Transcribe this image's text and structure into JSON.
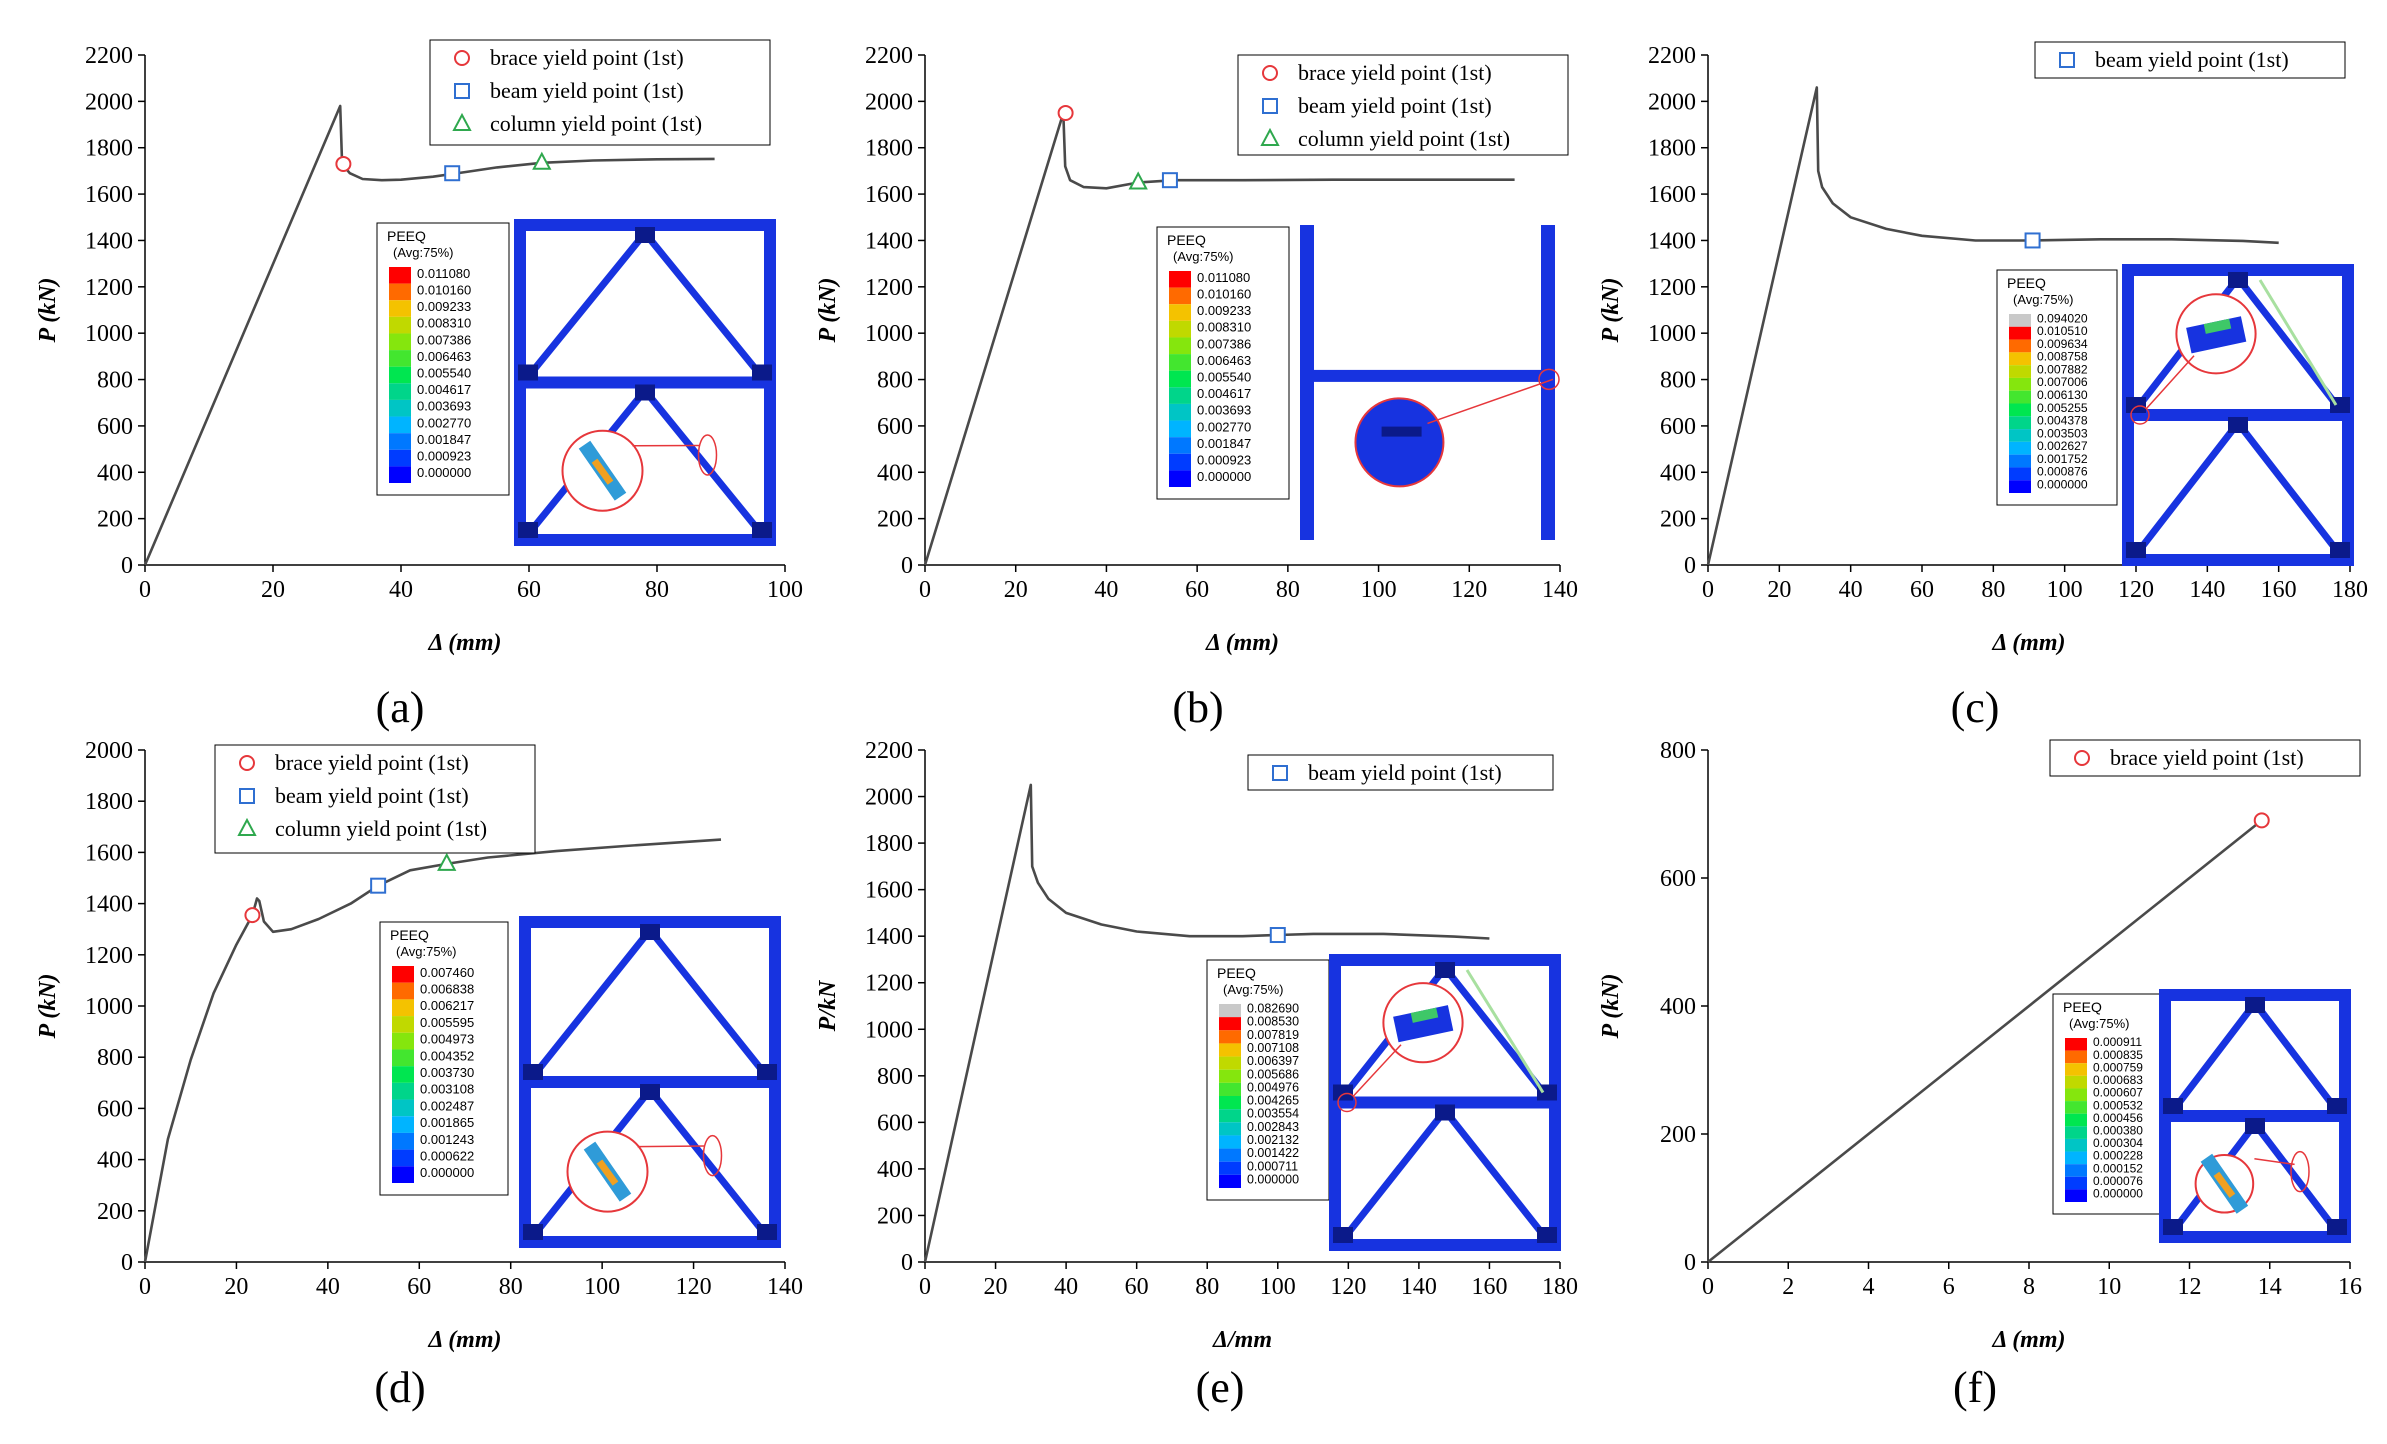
{
  "figure": {
    "panels": [
      "(a)",
      "(b)",
      "(c)",
      "(d)",
      "(e)",
      "(f)"
    ]
  },
  "chart_data": [
    {
      "id": "a",
      "type": "line",
      "panel_label": "(a)",
      "xlabel": "Δ (mm)",
      "ylabel": "P (kN)",
      "xlim": [
        0,
        100
      ],
      "ylim": [
        0,
        2200
      ],
      "xticks": [
        "0",
        "20",
        "40",
        "60",
        "80",
        "100"
      ],
      "yticks": [
        "0",
        "200",
        "400",
        "600",
        "800",
        "1000",
        "1200",
        "1400",
        "1600",
        "1800",
        "2000",
        "2200"
      ],
      "series": [
        {
          "name": "load-displacement",
          "x": [
            0,
            30.5,
            30.8,
            32,
            34,
            37,
            40,
            45,
            50,
            55,
            62,
            70,
            80,
            89
          ],
          "y": [
            0,
            1980,
            1730,
            1690,
            1665,
            1660,
            1662,
            1675,
            1695,
            1715,
            1735,
            1745,
            1750,
            1752
          ]
        }
      ],
      "markers": [
        {
          "kind": "brace",
          "label": "brace yield point (1st)",
          "x": 31,
          "y": 1730
        },
        {
          "kind": "beam",
          "label": "beam yield point (1st)",
          "x": 48,
          "y": 1690
        },
        {
          "kind": "column",
          "label": "column yield point (1st)",
          "x": 62,
          "y": 1735
        }
      ],
      "colorbar": {
        "title": "PEEQ",
        "subtitle": "(Avg:75%)",
        "values": [
          "0.011080",
          "0.010160",
          "0.009233",
          "0.008310",
          "0.007386",
          "0.006463",
          "0.005540",
          "0.004617",
          "0.003693",
          "0.002770",
          "0.001847",
          "0.000923",
          "0.000000"
        ]
      }
    },
    {
      "id": "b",
      "type": "line",
      "panel_label": "(b)",
      "xlabel": "Δ (mm)",
      "ylabel": "P (kN)",
      "xlim": [
        0,
        140
      ],
      "ylim": [
        0,
        2200
      ],
      "xticks": [
        "0",
        "20",
        "40",
        "60",
        "80",
        "100",
        "120",
        "140"
      ],
      "yticks": [
        "0",
        "200",
        "400",
        "600",
        "800",
        "1000",
        "1200",
        "1400",
        "1600",
        "1800",
        "2000",
        "2200"
      ],
      "series": [
        {
          "name": "load-displacement",
          "x": [
            0,
            30.5,
            30.9,
            32,
            35,
            40,
            47,
            55,
            70,
            90,
            110,
            130
          ],
          "y": [
            0,
            1950,
            1720,
            1660,
            1630,
            1625,
            1650,
            1660,
            1660,
            1662,
            1662,
            1662
          ]
        }
      ],
      "markers": [
        {
          "kind": "brace",
          "label": "brace yield point (1st)",
          "x": 31,
          "y": 1950
        },
        {
          "kind": "beam",
          "label": "beam yield point (1st)",
          "x": 54,
          "y": 1660
        },
        {
          "kind": "column",
          "label": "column yield point (1st)",
          "x": 47,
          "y": 1650
        }
      ],
      "colorbar": {
        "title": "PEEQ",
        "subtitle": "(Avg:75%)",
        "values": [
          "0.011080",
          "0.010160",
          "0.009233",
          "0.008310",
          "0.007386",
          "0.006463",
          "0.005540",
          "0.004617",
          "0.003693",
          "0.002770",
          "0.001847",
          "0.000923",
          "0.000000"
        ]
      }
    },
    {
      "id": "c",
      "type": "line",
      "panel_label": "(c)",
      "xlabel": "Δ (mm)",
      "ylabel": "P (kN)",
      "xlim": [
        0,
        180
      ],
      "ylim": [
        0,
        2200
      ],
      "xticks": [
        "0",
        "20",
        "40",
        "60",
        "80",
        "100",
        "120",
        "140",
        "160",
        "180"
      ],
      "yticks": [
        "0",
        "200",
        "400",
        "600",
        "800",
        "1000",
        "1200",
        "1400",
        "1600",
        "1800",
        "2000",
        "2200"
      ],
      "series": [
        {
          "name": "load-displacement",
          "x": [
            0,
            30.5,
            30.9,
            32,
            35,
            40,
            50,
            60,
            75,
            90,
            110,
            130,
            150,
            160
          ],
          "y": [
            0,
            2060,
            1700,
            1630,
            1560,
            1500,
            1450,
            1420,
            1400,
            1400,
            1405,
            1405,
            1398,
            1390
          ]
        }
      ],
      "markers": [
        {
          "kind": "beam",
          "label": "beam yield point (1st)",
          "x": 91,
          "y": 1400
        }
      ],
      "colorbar": {
        "title": "PEEQ",
        "subtitle": "(Avg:75%)",
        "values": [
          "0.094020",
          "0.010510",
          "0.009634",
          "0.008758",
          "0.007882",
          "0.007006",
          "0.006130",
          "0.005255",
          "0.004378",
          "0.003503",
          "0.002627",
          "0.001752",
          "0.000876",
          "0.000000"
        ]
      }
    },
    {
      "id": "d",
      "type": "line",
      "panel_label": "(d)",
      "xlabel": "Δ (mm)",
      "ylabel": "P (kN)",
      "xlim": [
        0,
        140
      ],
      "ylim": [
        0,
        2000
      ],
      "xticks": [
        "0",
        "20",
        "40",
        "60",
        "80",
        "100",
        "120",
        "140"
      ],
      "yticks": [
        "0",
        "200",
        "400",
        "600",
        "800",
        "1000",
        "1200",
        "1400",
        "1600",
        "1800",
        "2000"
      ],
      "series": [
        {
          "name": "load-displacement",
          "x": [
            0,
            5,
            10,
            15,
            20,
            23.5,
            24.5,
            25,
            26,
            28,
            32,
            38,
            45,
            51,
            58,
            66,
            75,
            90,
            105,
            115,
            126
          ],
          "y": [
            0,
            480,
            790,
            1050,
            1240,
            1355,
            1420,
            1410,
            1330,
            1290,
            1300,
            1340,
            1400,
            1470,
            1530,
            1555,
            1580,
            1605,
            1625,
            1637,
            1650
          ]
        }
      ],
      "markers": [
        {
          "kind": "brace",
          "label": "brace yield point (1st)",
          "x": 23.5,
          "y": 1355
        },
        {
          "kind": "beam",
          "label": "beam yield point (1st)",
          "x": 51,
          "y": 1470
        },
        {
          "kind": "column",
          "label": "column yield point (1st)",
          "x": 66,
          "y": 1555
        }
      ],
      "colorbar": {
        "title": "PEEQ",
        "subtitle": "(Avg:75%)",
        "values": [
          "0.007460",
          "0.006838",
          "0.006217",
          "0.005595",
          "0.004973",
          "0.004352",
          "0.003730",
          "0.003108",
          "0.002487",
          "0.001865",
          "0.001243",
          "0.000622",
          "0.000000"
        ]
      }
    },
    {
      "id": "e",
      "type": "line",
      "panel_label": "(e)",
      "xlabel": "Δ/mm",
      "ylabel": "P/kN",
      "xlim": [
        0,
        180
      ],
      "ylim": [
        0,
        2200
      ],
      "xticks": [
        "0",
        "20",
        "40",
        "60",
        "80",
        "100",
        "120",
        "140",
        "160",
        "180"
      ],
      "yticks": [
        "0",
        "200",
        "400",
        "600",
        "800",
        "1000",
        "1200",
        "1400",
        "1600",
        "1800",
        "2000",
        "2200"
      ],
      "series": [
        {
          "name": "load-displacement",
          "x": [
            0,
            30,
            30.4,
            32,
            35,
            40,
            50,
            60,
            75,
            90,
            100,
            110,
            130,
            150,
            160
          ],
          "y": [
            0,
            2050,
            1700,
            1630,
            1560,
            1500,
            1450,
            1420,
            1400,
            1400,
            1405,
            1410,
            1410,
            1398,
            1390
          ]
        }
      ],
      "markers": [
        {
          "kind": "beam",
          "label": "beam yield point (1st)",
          "x": 100,
          "y": 1405
        }
      ],
      "colorbar": {
        "title": "PEEQ",
        "subtitle": "(Avg:75%)",
        "values": [
          "0.082690",
          "0.008530",
          "0.007819",
          "0.007108",
          "0.006397",
          "0.005686",
          "0.004976",
          "0.004265",
          "0.003554",
          "0.002843",
          "0.002132",
          "0.001422",
          "0.000711",
          "0.000000"
        ]
      }
    },
    {
      "id": "f",
      "type": "line",
      "panel_label": "(f)",
      "xlabel": "Δ (mm)",
      "ylabel": "P (kN)",
      "xlim": [
        0,
        16
      ],
      "ylim": [
        0,
        800
      ],
      "xticks": [
        "0",
        "2",
        "4",
        "6",
        "8",
        "10",
        "12",
        "14",
        "16"
      ],
      "yticks": [
        "0",
        "200",
        "400",
        "600",
        "800"
      ],
      "series": [
        {
          "name": "load-displacement",
          "x": [
            0,
            13.8
          ],
          "y": [
            0,
            690
          ]
        }
      ],
      "markers": [
        {
          "kind": "brace",
          "label": "brace yield point (1st)",
          "x": 13.8,
          "y": 690
        }
      ],
      "colorbar": {
        "title": "PEEQ",
        "subtitle": "(Avg:75%)",
        "values": [
          "0.000911",
          "0.000835",
          "0.000759",
          "0.000683",
          "0.000607",
          "0.000532",
          "0.000456",
          "0.000380",
          "0.000304",
          "0.000228",
          "0.000152",
          "0.000076",
          "0.000000"
        ]
      }
    }
  ]
}
